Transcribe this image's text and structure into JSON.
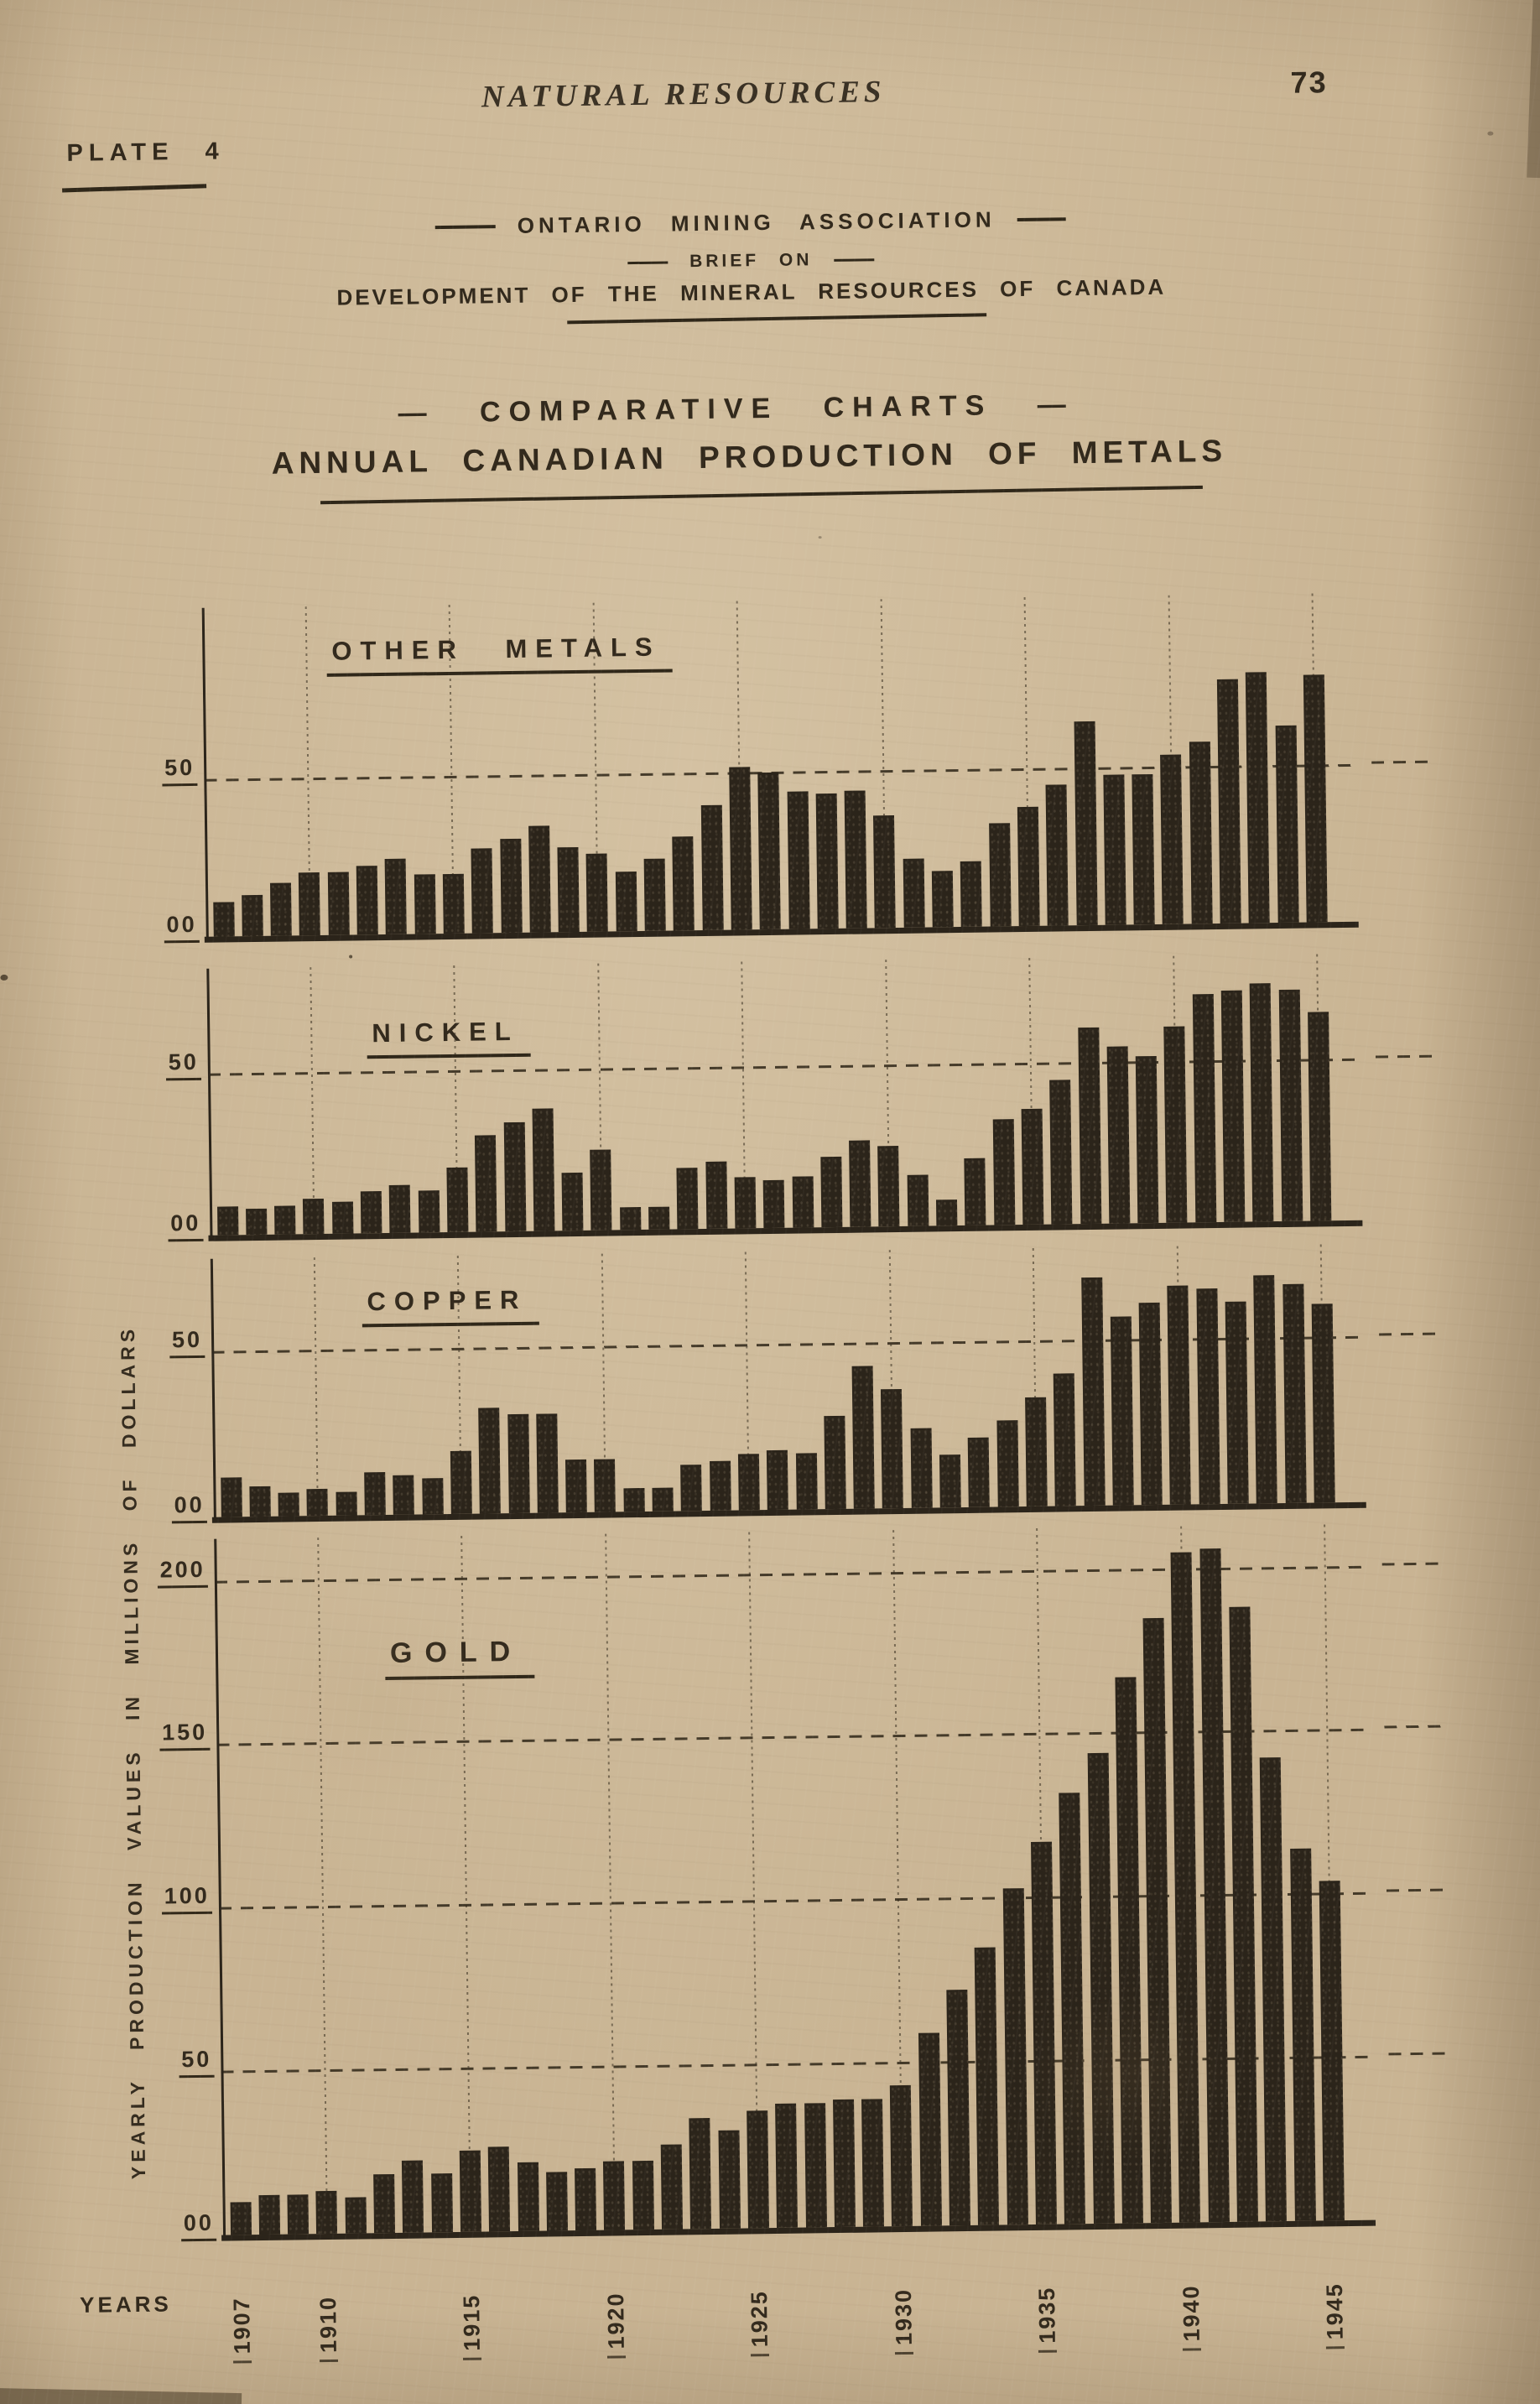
{
  "page": {
    "running_header": "NATURAL RESOURCES",
    "page_number": "73",
    "plate_label": "PLATE  4",
    "org_line": "ONTARIO  MINING  ASSOCIATION",
    "brief_line": "BRIEF  ON",
    "dev_line": "DEVELOPMENT  OF  THE  MINERAL  RESOURCES  OF  CANADA",
    "heading_line1": "— COMPARATIVE  CHARTS —",
    "heading_line2": "ANNUAL  CANADIAN  PRODUCTION  OF  METALS"
  },
  "colors": {
    "paper": "#c9b493",
    "ink": "#2f2719",
    "bar": "#2b241a"
  },
  "chart_data": {
    "type": "bar",
    "xlabel": "YEARS",
    "ylabel": "YEARLY  PRODUCTION  VALUES  IN  MILLIONS  OF  DOLLARS",
    "x_tick_labels": [
      "1907",
      "1910",
      "1915",
      "1920",
      "1925",
      "1930",
      "1935",
      "1940",
      "1945"
    ],
    "categories": [
      1907,
      1908,
      1909,
      1910,
      1911,
      1912,
      1913,
      1914,
      1915,
      1916,
      1917,
      1918,
      1919,
      1920,
      1921,
      1922,
      1923,
      1924,
      1925,
      1926,
      1927,
      1928,
      1929,
      1930,
      1931,
      1932,
      1933,
      1934,
      1935,
      1936,
      1937,
      1938,
      1939,
      1940,
      1941,
      1942,
      1943,
      1944,
      1945
    ],
    "grid": "dashed horizontal at 50-unit intervals, dotted vertical at 5-year marks",
    "legend_position": "none",
    "series": [
      {
        "name": "OTHER  METALS",
        "yticks": [
          "00",
          "50"
        ],
        "ylim": [
          0,
          105
        ],
        "values": [
          11,
          13,
          17,
          20,
          20,
          22,
          24,
          19,
          19,
          27,
          30,
          34,
          27,
          25,
          19,
          23,
          30,
          40,
          52,
          50,
          44,
          43,
          44,
          36,
          22,
          18,
          21,
          33,
          38,
          45,
          65,
          48,
          48,
          54,
          58,
          78,
          80,
          63,
          79
        ]
      },
      {
        "name": "NICKEL",
        "yticks": [
          "00",
          "50"
        ],
        "ylim": [
          0,
          83
        ],
        "values": [
          9,
          8,
          9,
          11,
          10,
          13,
          15,
          13,
          20,
          30,
          34,
          38,
          18,
          25,
          7,
          7,
          19,
          21,
          16,
          15,
          16,
          22,
          27,
          25,
          16,
          8,
          21,
          33,
          36,
          45,
          61,
          55,
          52,
          61,
          71,
          72,
          74,
          72,
          65
        ]
      },
      {
        "name": "COPPER",
        "yticks": [
          "00",
          "50"
        ],
        "ylim": [
          0,
          78
        ],
        "values": [
          12,
          9,
          7,
          8,
          7,
          13,
          12,
          11,
          19,
          32,
          30,
          30,
          16,
          16,
          7,
          7,
          14,
          15,
          17,
          18,
          17,
          28,
          43,
          36,
          24,
          16,
          21,
          26,
          33,
          40,
          69,
          57,
          61,
          66,
          65,
          61,
          69,
          66,
          60
        ]
      },
      {
        "name": "GOLD",
        "yticks": [
          "00",
          "50",
          "100",
          "150",
          "200"
        ],
        "ylim": [
          0,
          213
        ],
        "values": [
          10,
          12,
          12,
          13,
          11,
          18,
          22,
          18,
          25,
          26,
          21,
          18,
          19,
          21,
          21,
          26,
          34,
          30,
          36,
          38,
          38,
          39,
          39,
          43,
          59,
          72,
          85,
          103,
          117,
          132,
          144,
          167,
          185,
          205,
          206,
          188,
          142,
          114,
          104
        ]
      }
    ]
  }
}
